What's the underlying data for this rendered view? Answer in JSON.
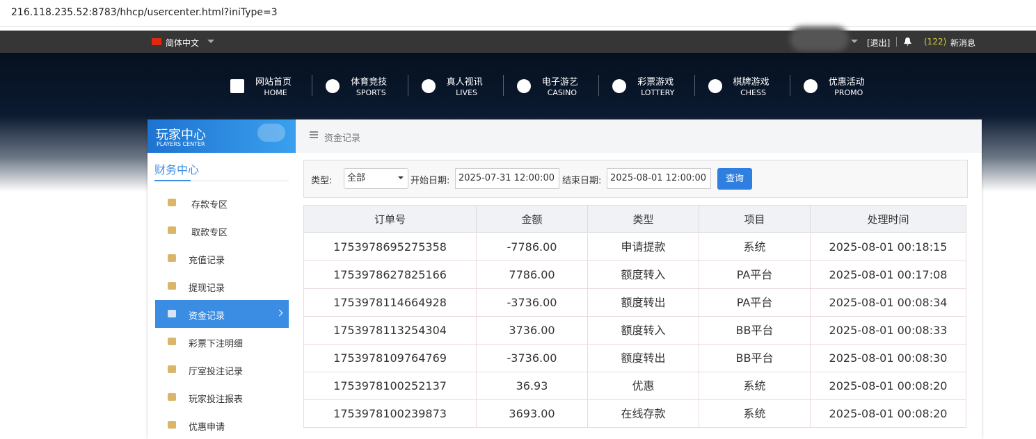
{
  "browser": {
    "url": "216.118.235.52:8783/hhcp/usercenter.html?iniType=3"
  },
  "topbar": {
    "language": "简体中文",
    "logout": "[退出]",
    "message_count": "(122)",
    "messages": "新消息"
  },
  "nav": [
    {
      "zh": "网站首页",
      "en": "HOME"
    },
    {
      "zh": "体育竞技",
      "en": "SPORTS"
    },
    {
      "zh": "真人视讯",
      "en": "LIVES"
    },
    {
      "zh": "电子游艺",
      "en": "CASINO"
    },
    {
      "zh": "彩票游戏",
      "en": "LOTTERY"
    },
    {
      "zh": "棋牌游戏",
      "en": "CHESS"
    },
    {
      "zh": "优惠活动",
      "en": "PROMO"
    }
  ],
  "sidebar": {
    "title": "玩家中心",
    "subtitle": "PLAYERS CENTER",
    "section": "财务中心",
    "active": 4,
    "items": [
      "存款专区",
      "取款专区",
      "充值记录",
      "提现记录",
      "资金记录",
      "彩票下注明细",
      "厅室投注记录",
      "玩家投注报表",
      "优惠申请"
    ]
  },
  "breadcrumb": "资金记录",
  "filter": {
    "type_label": "类型:",
    "type_value": "全部",
    "start_label": "开始日期:",
    "start_value": "2025-07-31 12:00:00",
    "end_label": "结束日期:",
    "end_value": "2025-08-01 12:00:00",
    "button": "查询"
  },
  "table": {
    "headers": [
      "订单号",
      "金额",
      "类型",
      "项目",
      "处理时间"
    ],
    "rows": [
      [
        "1753978695275358",
        "-7786.00",
        "申请提款",
        "系统",
        "2025-08-01 00:18:15"
      ],
      [
        "1753978627825166",
        "7786.00",
        "额度转入",
        "PA平台",
        "2025-08-01 00:17:08"
      ],
      [
        "1753978114664928",
        "-3736.00",
        "额度转出",
        "PA平台",
        "2025-08-01 00:08:34"
      ],
      [
        "1753978113254304",
        "3736.00",
        "额度转入",
        "BB平台",
        "2025-08-01 00:08:33"
      ],
      [
        "1753978109764769",
        "-3736.00",
        "额度转出",
        "BB平台",
        "2025-08-01 00:08:30"
      ],
      [
        "1753978100252137",
        "36.93",
        "优惠",
        "系统",
        "2025-08-01 00:08:20"
      ],
      [
        "1753978100239873",
        "3693.00",
        "在线存款",
        "系统",
        "2025-08-01 00:08:20"
      ]
    ]
  }
}
